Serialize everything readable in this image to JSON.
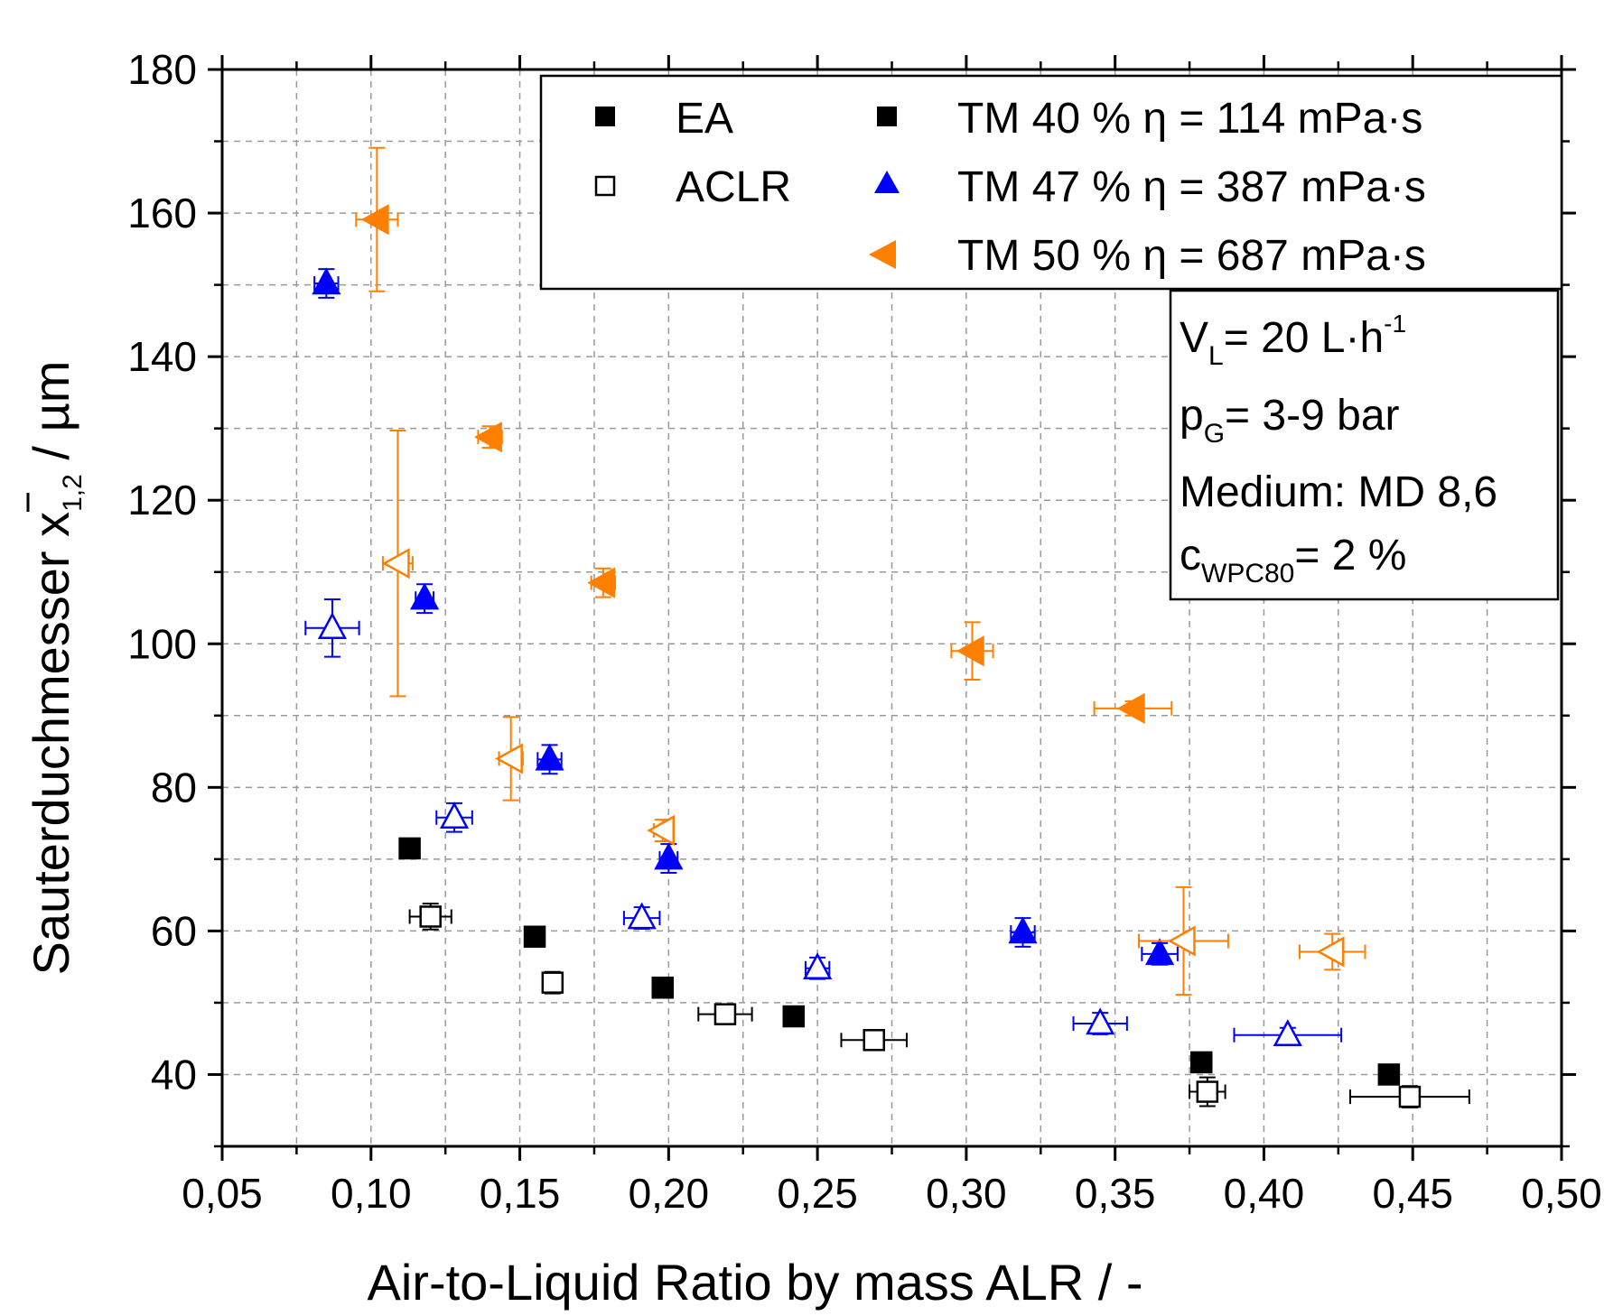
{
  "chart_data": {
    "type": "scatter",
    "xlabel": "Air-to-Liquid Ratio by mass ALR / -",
    "ylabel": {
      "main": "Sauterduchmesser x",
      "sub": "1,2",
      "unit": " / µm"
    },
    "xlim": [
      0.05,
      0.5
    ],
    "ylim": [
      30,
      180
    ],
    "x_ticks": [
      "0,05",
      "0,10",
      "0,15",
      "0,20",
      "0,25",
      "0,30",
      "0,35",
      "0,40",
      "0,45",
      "0,50"
    ],
    "y_ticks": [
      "40",
      "60",
      "80",
      "100",
      "120",
      "140",
      "160",
      "180"
    ],
    "grid": true,
    "legend_position": "top-right",
    "legend": {
      "methods": [
        {
          "label": "EA",
          "marker": "filled-square"
        },
        {
          "label": "ACLR",
          "marker": "open-square"
        }
      ],
      "media": [
        {
          "label": "TM 40 % η = 114 mPa·s",
          "marker": "square",
          "color": "#000000"
        },
        {
          "label": "TM 47 % η = 387 mPa·s",
          "marker": "triangle-up",
          "color": "#0000ff"
        },
        {
          "label": "TM 50 % η = 687 mPa·s",
          "marker": "triangle-left",
          "color": "#ff7f00"
        }
      ]
    },
    "info_box": {
      "line1": {
        "main": "V",
        "sub": "L",
        "rest": "= 20 L·h",
        "sup": "-1"
      },
      "line2": {
        "main": "p",
        "sub": "G",
        "rest": "= 3-9 bar"
      },
      "line3": {
        "text": "Medium: MD 8,6"
      },
      "line4": {
        "main": "c",
        "sub": "WPC80",
        "rest": "= 2 %"
      }
    },
    "series": [
      {
        "name": "TM 40 % η = 114 mPa·s",
        "method": "EA",
        "marker": "square",
        "filled": true,
        "color": "#000000",
        "points": [
          {
            "x": 0.113,
            "y": 71.5
          },
          {
            "x": 0.155,
            "y": 59.2
          },
          {
            "x": 0.198,
            "y": 52.1
          },
          {
            "x": 0.242,
            "y": 48.1
          },
          {
            "x": 0.379,
            "y": 41.7
          },
          {
            "x": 0.442,
            "y": 40.0
          }
        ]
      },
      {
        "name": "TM 40 % η = 114 mPa·s",
        "method": "ACLR",
        "marker": "square",
        "filled": false,
        "color": "#000000",
        "points": [
          {
            "x": 0.12,
            "y": 62.0,
            "xerr": 0.007,
            "yerr": 1.8
          },
          {
            "x": 0.161,
            "y": 52.8,
            "xerr": 0.002,
            "yerr": 1.5
          },
          {
            "x": 0.219,
            "y": 48.4,
            "xerr": 0.009,
            "yerr": 1.2
          },
          {
            "x": 0.269,
            "y": 44.8,
            "xerr": 0.011,
            "yerr": 0.8
          },
          {
            "x": 0.381,
            "y": 37.6,
            "xerr": 0.006,
            "yerr": 2.0
          },
          {
            "x": 0.449,
            "y": 36.9,
            "xerr": 0.02,
            "yerr": 1.5
          }
        ]
      },
      {
        "name": "TM 47 % η = 387 mPa·s",
        "method": "EA",
        "marker": "triangle-up",
        "filled": true,
        "color": "#0000ff",
        "points": [
          {
            "x": 0.085,
            "y": 150.2,
            "xerr": 0.004,
            "yerr": 2.0
          },
          {
            "x": 0.118,
            "y": 106.3,
            "xerr": 0.003,
            "yerr": 2.0
          },
          {
            "x": 0.16,
            "y": 83.9,
            "xerr": 0.004,
            "yerr": 2.0
          },
          {
            "x": 0.2,
            "y": 70.1,
            "xerr": 0.003,
            "yerr": 2.0
          },
          {
            "x": 0.319,
            "y": 59.8,
            "xerr": 0.004,
            "yerr": 2.0
          },
          {
            "x": 0.365,
            "y": 56.8,
            "xerr": 0.006,
            "yerr": 1.5
          }
        ]
      },
      {
        "name": "TM 47 % η = 387 mPa·s",
        "method": "ACLR",
        "marker": "triangle-up",
        "filled": false,
        "color": "#0000ff",
        "points": [
          {
            "x": 0.087,
            "y": 102.2,
            "xerr": 0.009,
            "yerr": 4.0
          },
          {
            "x": 0.128,
            "y": 75.8,
            "xerr": 0.006,
            "yerr": 2.0
          },
          {
            "x": 0.191,
            "y": 61.8,
            "xerr": 0.006,
            "yerr": 1.5
          },
          {
            "x": 0.25,
            "y": 54.8,
            "xerr": 0.004,
            "yerr": 1.5
          },
          {
            "x": 0.345,
            "y": 47.1,
            "xerr": 0.009,
            "yerr": 1.5
          },
          {
            "x": 0.408,
            "y": 45.5,
            "xerr": 0.018,
            "yerr": 1.0
          }
        ]
      },
      {
        "name": "TM 50 % η = 687 mPa·s",
        "method": "EA",
        "marker": "triangle-left",
        "filled": true,
        "color": "#ff7f00",
        "points": [
          {
            "x": 0.102,
            "y": 159.1,
            "xerr": 0.007,
            "yerr": 10.0
          },
          {
            "x": 0.14,
            "y": 128.8,
            "xerr": 0.004,
            "yerr": 1.5
          },
          {
            "x": 0.178,
            "y": 108.5,
            "xerr": 0.004,
            "yerr": 2.0
          },
          {
            "x": 0.302,
            "y": 99.0,
            "xerr": 0.007,
            "yerr": 4.0
          },
          {
            "x": 0.356,
            "y": 91.0,
            "xerr": 0.013,
            "yerr": 1.0
          }
        ]
      },
      {
        "name": "TM 50 % η = 687 mPa·s",
        "method": "ACLR",
        "marker": "triangle-left",
        "filled": false,
        "color": "#ff7f00",
        "points": [
          {
            "x": 0.109,
            "y": 111.2,
            "xerr": 0.005,
            "yerr": 18.5
          },
          {
            "x": 0.147,
            "y": 84.0,
            "xerr": 0.004,
            "yerr": 5.8
          },
          {
            "x": 0.198,
            "y": 74.0,
            "xerr": 0.003,
            "yerr": 1.5
          },
          {
            "x": 0.373,
            "y": 58.6,
            "xerr": 0.015,
            "yerr": 7.5
          },
          {
            "x": 0.423,
            "y": 57.1,
            "xerr": 0.011,
            "yerr": 2.5
          }
        ]
      }
    ]
  }
}
